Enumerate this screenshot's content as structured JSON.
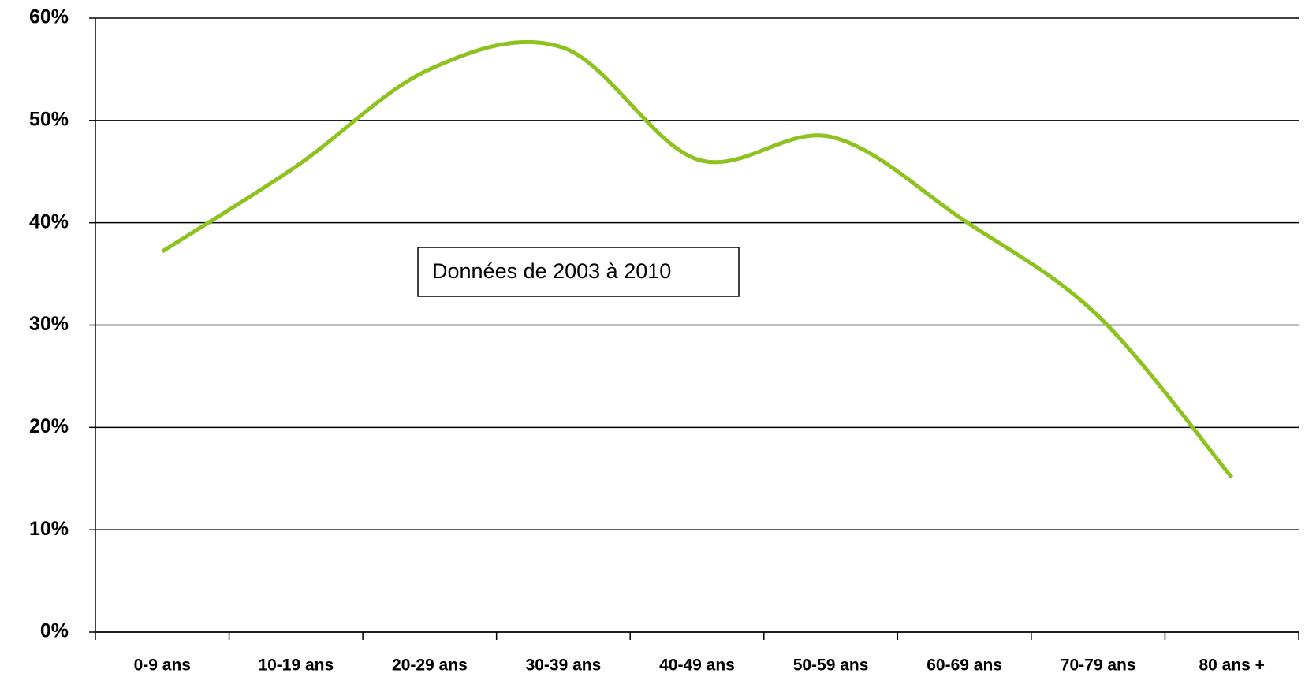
{
  "chart_data": {
    "type": "line",
    "categories": [
      "0-9 ans",
      "10-19 ans",
      "20-29 ans",
      "30-39 ans",
      "40-49 ans",
      "50-59 ans",
      "60-69 ans",
      "70-79 ans",
      "80 ans +"
    ],
    "series": [
      {
        "color": "#8dc21f",
        "values": [
          37.2,
          45.5,
          55.0,
          57.1,
          46.2,
          48.4,
          40.2,
          30.9,
          15.1
        ]
      }
    ],
    "ylim": [
      0,
      60
    ],
    "yticks": [
      {
        "value": 0,
        "label": "0%"
      },
      {
        "value": 10,
        "label": "10%"
      },
      {
        "value": 20,
        "label": "20%"
      },
      {
        "value": 30,
        "label": "30%"
      },
      {
        "value": 40,
        "label": "40%"
      },
      {
        "value": 50,
        "label": "50%"
      },
      {
        "value": 60,
        "label": "60%"
      }
    ],
    "annotation": "Données de 2003 à 2010",
    "grid": true
  }
}
